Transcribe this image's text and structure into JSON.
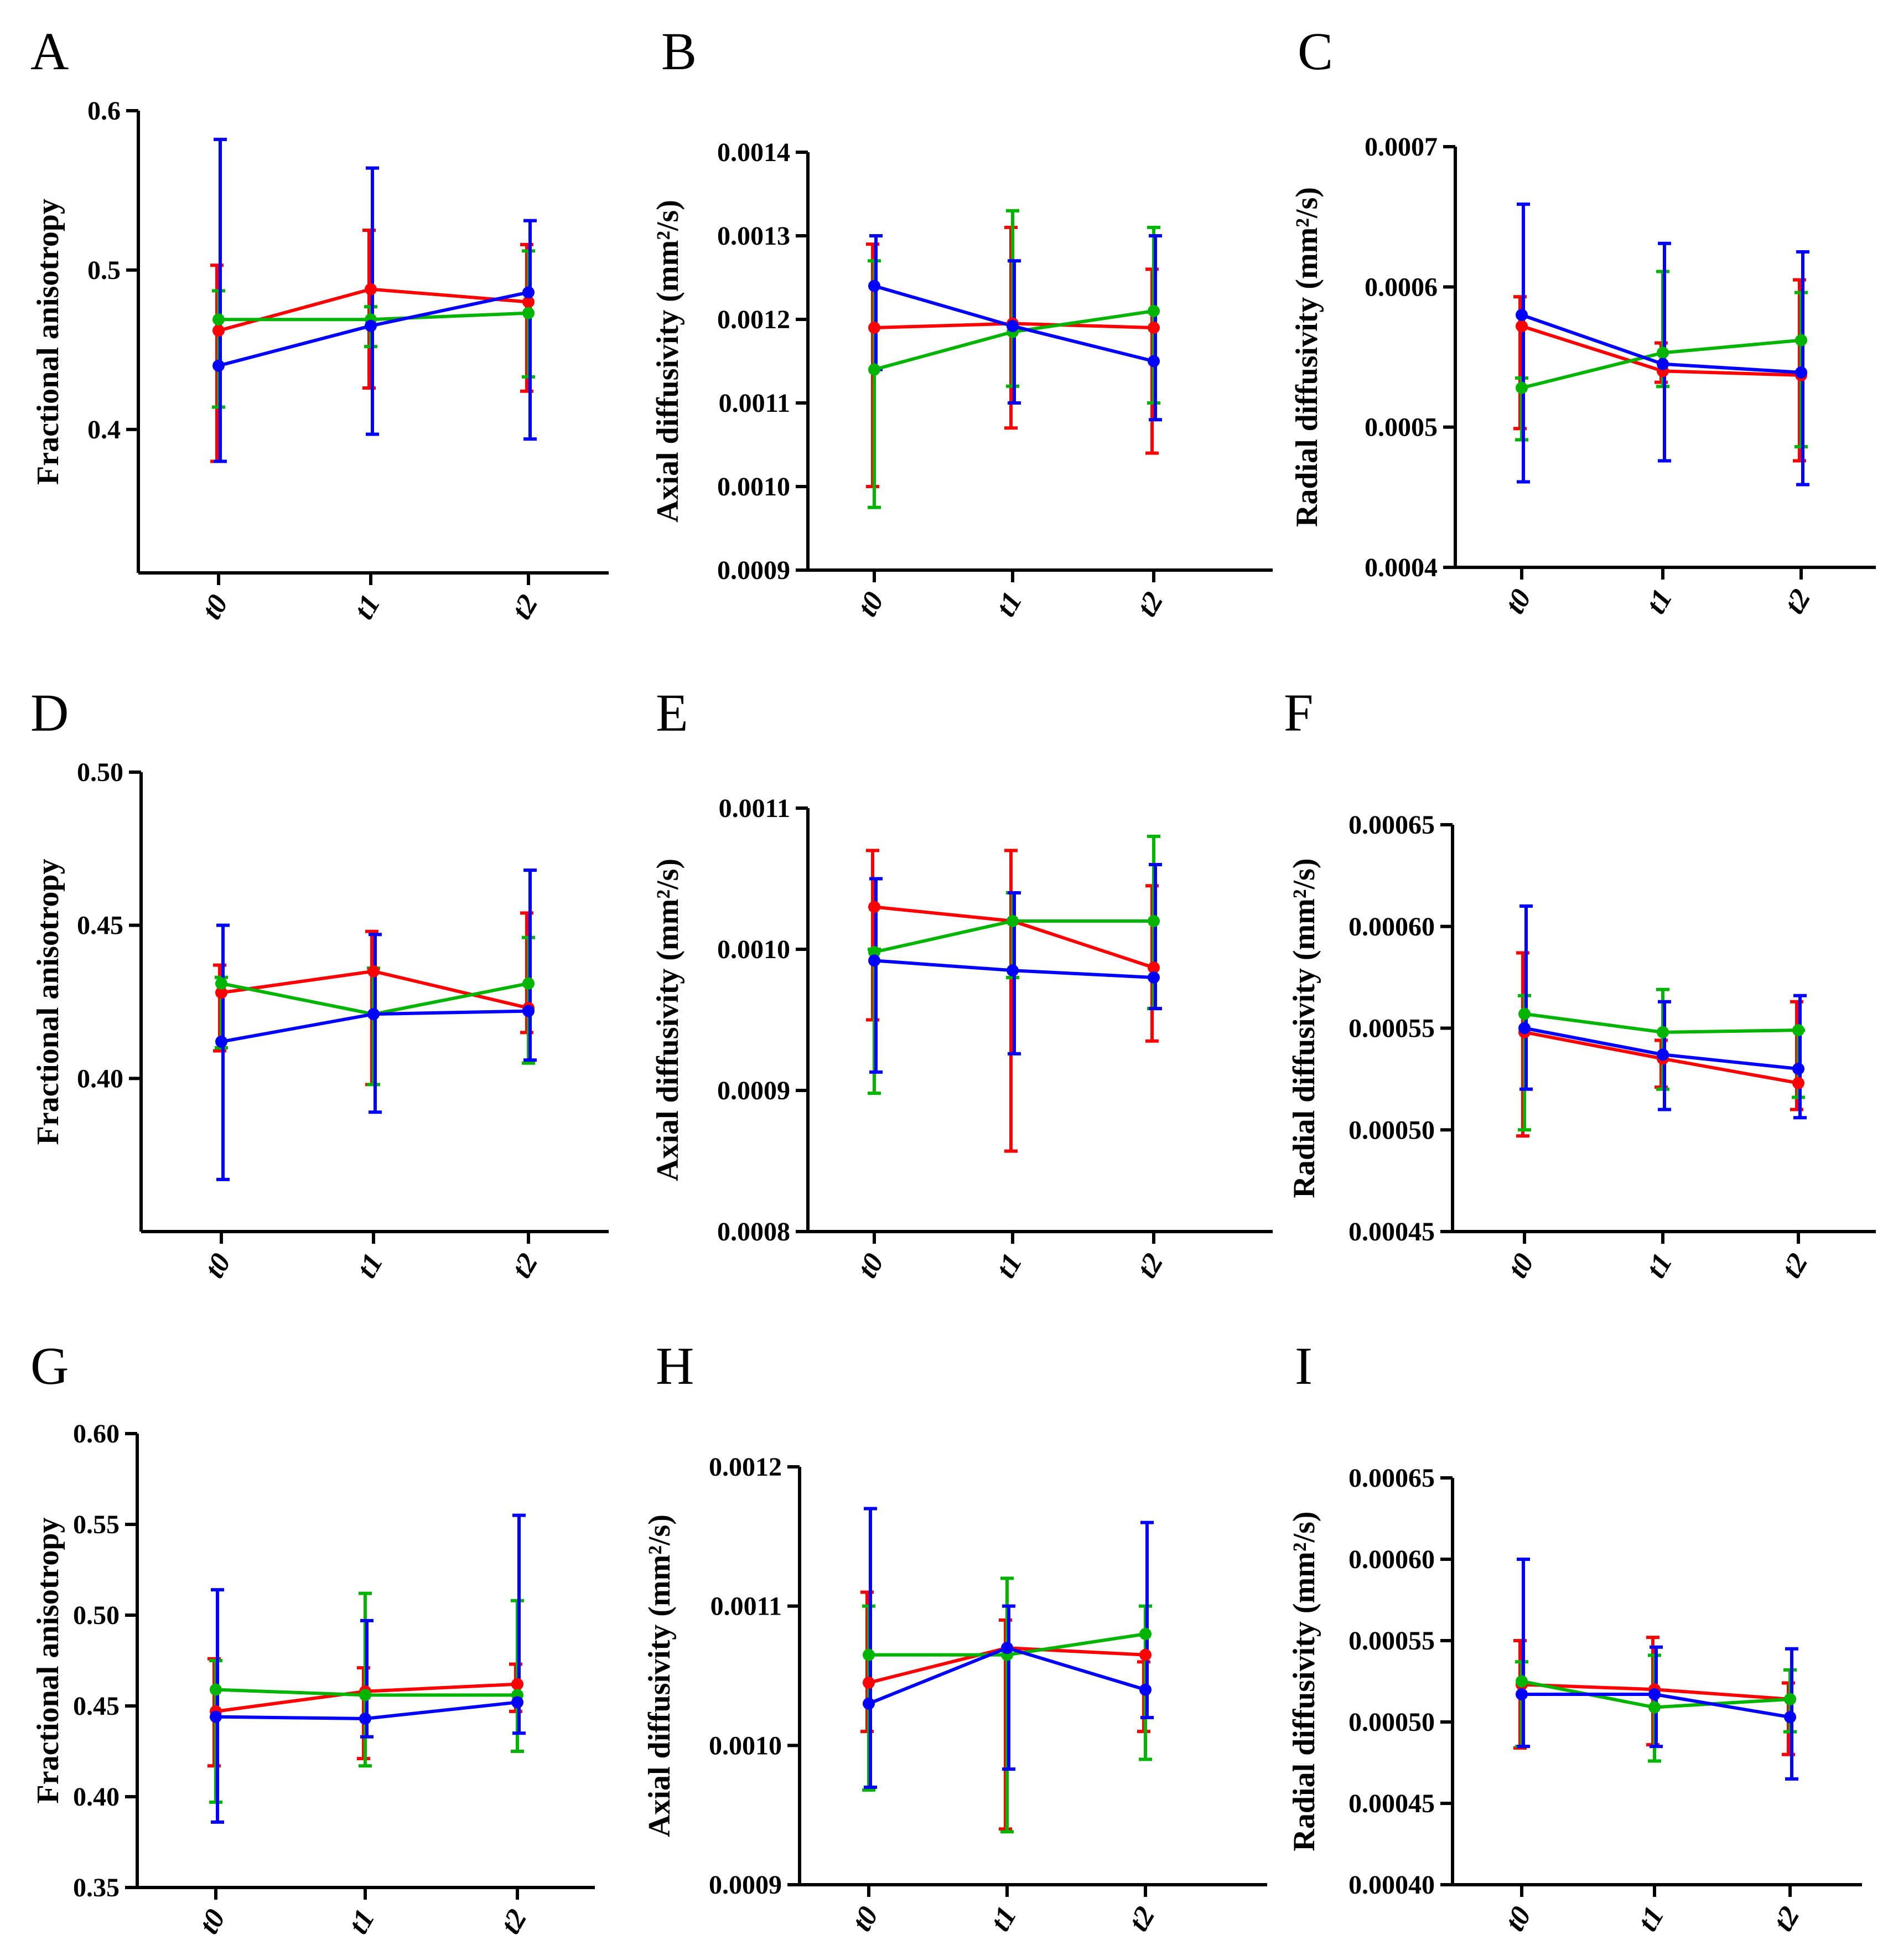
{
  "colors": {
    "red": "#ff0000",
    "green": "#00b400",
    "blue": "#0000ff"
  },
  "chart_data": [
    {
      "panel": "A",
      "type": "line",
      "ylabel": "Fractional anisotropy",
      "categories": [
        "t0",
        "t1",
        "t2"
      ],
      "ylim": [
        0.31,
        0.6
      ],
      "ticks": [
        0.4,
        0.5,
        0.6
      ],
      "tick_labels": [
        "0.4",
        "0.5",
        "0.6"
      ],
      "series": [
        {
          "color": "red",
          "values": [
            0.462,
            0.488,
            0.48
          ],
          "err_low": [
            0.38,
            0.426,
            0.424
          ],
          "err_high": [
            0.503,
            0.525,
            0.516
          ]
        },
        {
          "color": "green",
          "values": [
            0.469,
            0.469,
            0.473
          ],
          "err_low": [
            0.414,
            0.452,
            0.433
          ],
          "err_high": [
            0.487,
            0.477,
            0.512
          ]
        },
        {
          "color": "blue",
          "values": [
            0.44,
            0.465,
            0.486
          ],
          "err_low": [
            0.38,
            0.397,
            0.394
          ],
          "err_high": [
            0.582,
            0.564,
            0.531
          ]
        }
      ]
    },
    {
      "panel": "B",
      "type": "line",
      "ylabel": "Axial diffusivity (mm²/s)",
      "categories": [
        "t0",
        "t1",
        "t2"
      ],
      "ylim": [
        0.0009,
        0.0014
      ],
      "ticks": [
        0.0009,
        0.001,
        0.0011,
        0.0012,
        0.0013,
        0.0014
      ],
      "tick_labels": [
        "0.0009",
        "0.0010",
        "0.0011",
        "0.0012",
        "0.0013",
        "0.0014"
      ],
      "series": [
        {
          "color": "red",
          "values": [
            0.00119,
            0.001195,
            0.00119
          ],
          "err_low": [
            0.001,
            0.00107,
            0.00104
          ],
          "err_high": [
            0.00129,
            0.00131,
            0.00126
          ]
        },
        {
          "color": "green",
          "values": [
            0.00114,
            0.001185,
            0.00121
          ],
          "err_low": [
            0.000975,
            0.00112,
            0.0011
          ],
          "err_high": [
            0.00127,
            0.00133,
            0.00131
          ]
        },
        {
          "color": "blue",
          "values": [
            0.00124,
            0.001192,
            0.00115
          ],
          "err_low": [
            0.00114,
            0.0011,
            0.00108
          ],
          "err_high": [
            0.0013,
            0.00127,
            0.0013
          ]
        }
      ]
    },
    {
      "panel": "C",
      "type": "line",
      "ylabel": "Radial diffusivity (mm²/s)",
      "categories": [
        "t0",
        "t1",
        "t2"
      ],
      "ylim": [
        0.0004,
        0.0007
      ],
      "ticks": [
        0.0004,
        0.0005,
        0.0006,
        0.0007
      ],
      "tick_labels": [
        "0.0004",
        "0.0005",
        "0.0006",
        "0.0007"
      ],
      "series": [
        {
          "color": "red",
          "values": [
            0.000572,
            0.00054,
            0.000537
          ],
          "err_low": [
            0.000499,
            0.000532,
            0.000476
          ],
          "err_high": [
            0.000593,
            0.00056,
            0.000605
          ]
        },
        {
          "color": "green",
          "values": [
            0.000528,
            0.000553,
            0.000562
          ],
          "err_low": [
            0.000491,
            0.000529,
            0.000486
          ],
          "err_high": [
            0.000535,
            0.000611,
            0.000596
          ]
        },
        {
          "color": "blue",
          "values": [
            0.00058,
            0.000545,
            0.000539
          ],
          "err_low": [
            0.000461,
            0.000476,
            0.000459
          ],
          "err_high": [
            0.000659,
            0.000631,
            0.000625
          ]
        }
      ]
    },
    {
      "panel": "D",
      "type": "line",
      "ylabel": "Fractional anisotropy",
      "categories": [
        "t0",
        "t1",
        "t2"
      ],
      "ylim": [
        0.35,
        0.5
      ],
      "ticks": [
        0.4,
        0.45,
        0.5
      ],
      "tick_labels": [
        "0.40",
        "0.45",
        "0.50"
      ],
      "series": [
        {
          "color": "red",
          "values": [
            0.428,
            0.435,
            0.423
          ],
          "err_low": [
            0.409,
            0.398,
            0.415
          ],
          "err_high": [
            0.437,
            0.448,
            0.454
          ]
        },
        {
          "color": "green",
          "values": [
            0.431,
            0.421,
            0.431
          ],
          "err_low": [
            0.41,
            0.398,
            0.405
          ],
          "err_high": [
            0.433,
            0.436,
            0.446
          ]
        },
        {
          "color": "blue",
          "values": [
            0.412,
            0.421,
            0.422
          ],
          "err_low": [
            0.367,
            0.389,
            0.406
          ],
          "err_high": [
            0.45,
            0.447,
            0.468
          ]
        }
      ]
    },
    {
      "panel": "E",
      "type": "line",
      "ylabel": "Axial diffusivity (mm²/s)",
      "categories": [
        "t0",
        "t1",
        "t2"
      ],
      "ylim": [
        0.0008,
        0.0011
      ],
      "ticks": [
        0.0008,
        0.0009,
        0.001,
        0.0011
      ],
      "tick_labels": [
        "0.0008",
        "0.0009",
        "0.0010",
        "0.0011"
      ],
      "series": [
        {
          "color": "red",
          "values": [
            0.00103,
            0.00102,
            0.000987
          ],
          "err_low": [
            0.00095,
            0.000857,
            0.000935
          ],
          "err_high": [
            0.00107,
            0.00107,
            0.001045
          ]
        },
        {
          "color": "green",
          "values": [
            0.000998,
            0.00102,
            0.00102
          ],
          "err_low": [
            0.000898,
            0.00098,
            0.000958
          ],
          "err_high": [
            0.001,
            0.00104,
            0.00108
          ]
        },
        {
          "color": "blue",
          "values": [
            0.000992,
            0.000985,
            0.00098
          ],
          "err_low": [
            0.000913,
            0.000926,
            0.000958
          ],
          "err_high": [
            0.00105,
            0.00104,
            0.00106
          ]
        }
      ]
    },
    {
      "panel": "F",
      "type": "line",
      "ylabel": "Radial diffusivity (mm²/s)",
      "categories": [
        "t0",
        "t1",
        "t2"
      ],
      "ylim": [
        0.00045,
        0.00065
      ],
      "ticks": [
        0.00045,
        0.0005,
        0.00055,
        0.0006,
        0.00065
      ],
      "tick_labels": [
        "0.00045",
        "0.00050",
        "0.00055",
        "0.00060",
        "0.00065"
      ],
      "series": [
        {
          "color": "red",
          "values": [
            0.000548,
            0.000535,
            0.000523
          ],
          "err_low": [
            0.000497,
            0.000521,
            0.00051
          ],
          "err_high": [
            0.000587,
            0.000544,
            0.000563
          ]
        },
        {
          "color": "green",
          "values": [
            0.000557,
            0.000548,
            0.000549
          ],
          "err_low": [
            0.0005,
            0.00052,
            0.000516
          ],
          "err_high": [
            0.000566,
            0.000569,
            0.000549
          ]
        },
        {
          "color": "blue",
          "values": [
            0.00055,
            0.000537,
            0.00053
          ],
          "err_low": [
            0.00052,
            0.00051,
            0.000506
          ],
          "err_high": [
            0.00061,
            0.000563,
            0.000566
          ]
        }
      ]
    },
    {
      "panel": "G",
      "type": "line",
      "ylabel": "Fractional anisotropy",
      "categories": [
        "t0",
        "t1",
        "t2"
      ],
      "ylim": [
        0.35,
        0.6
      ],
      "ticks": [
        0.35,
        0.4,
        0.45,
        0.5,
        0.55,
        0.6
      ],
      "tick_labels": [
        "0.35",
        "0.40",
        "0.45",
        "0.50",
        "0.55",
        "0.60"
      ],
      "series": [
        {
          "color": "red",
          "values": [
            0.447,
            0.458,
            0.462
          ],
          "err_low": [
            0.417,
            0.421,
            0.447
          ],
          "err_high": [
            0.476,
            0.471,
            0.473
          ]
        },
        {
          "color": "green",
          "values": [
            0.459,
            0.456,
            0.456
          ],
          "err_low": [
            0.397,
            0.417,
            0.425
          ],
          "err_high": [
            0.475,
            0.512,
            0.508
          ]
        },
        {
          "color": "blue",
          "values": [
            0.444,
            0.443,
            0.452
          ],
          "err_low": [
            0.386,
            0.433,
            0.435
          ],
          "err_high": [
            0.514,
            0.497,
            0.555
          ]
        }
      ]
    },
    {
      "panel": "H",
      "type": "line",
      "ylabel": "Axial diffusivity (mm²/s)",
      "categories": [
        "t0",
        "t1",
        "t2"
      ],
      "ylim": [
        0.0009,
        0.0012
      ],
      "ticks": [
        0.0009,
        0.001,
        0.0011,
        0.0012
      ],
      "tick_labels": [
        "0.0009",
        "0.0010",
        "0.0011",
        "0.0012"
      ],
      "series": [
        {
          "color": "red",
          "values": [
            0.001045,
            0.00107,
            0.001065
          ],
          "err_low": [
            0.00101,
            0.00094,
            0.00101
          ],
          "err_high": [
            0.00111,
            0.00109,
            0.00106
          ]
        },
        {
          "color": "green",
          "values": [
            0.001065,
            0.001065,
            0.00108
          ],
          "err_low": [
            0.000968,
            0.000938,
            0.00099
          ],
          "err_high": [
            0.0011,
            0.00112,
            0.0011
          ]
        },
        {
          "color": "blue",
          "values": [
            0.00103,
            0.00107,
            0.00104
          ],
          "err_low": [
            0.00097,
            0.000983,
            0.00102
          ],
          "err_high": [
            0.00117,
            0.0011,
            0.00116
          ]
        }
      ]
    },
    {
      "panel": "I",
      "type": "line",
      "ylabel": "Radial diffusivity (mm²/s)",
      "categories": [
        "t0",
        "t1",
        "t2"
      ],
      "ylim": [
        0.0004,
        0.00065
      ],
      "ticks": [
        0.0004,
        0.00045,
        0.0005,
        0.00055,
        0.0006,
        0.00065
      ],
      "tick_labels": [
        "0.00040",
        "0.00045",
        "0.00050",
        "0.00055",
        "0.00060",
        "0.00065"
      ],
      "series": [
        {
          "color": "red",
          "values": [
            0.000523,
            0.00052,
            0.000514
          ],
          "err_low": [
            0.000484,
            0.000486,
            0.00048
          ],
          "err_high": [
            0.00055,
            0.000552,
            0.000524
          ]
        },
        {
          "color": "green",
          "values": [
            0.000525,
            0.000509,
            0.000514
          ],
          "err_low": [
            0.000485,
            0.000476,
            0.000494
          ],
          "err_high": [
            0.000537,
            0.000541,
            0.000532
          ]
        },
        {
          "color": "blue",
          "values": [
            0.000517,
            0.000517,
            0.000503
          ],
          "err_low": [
            0.000485,
            0.000485,
            0.000465
          ],
          "err_high": [
            0.0006,
            0.000546,
            0.000545
          ]
        }
      ]
    }
  ]
}
